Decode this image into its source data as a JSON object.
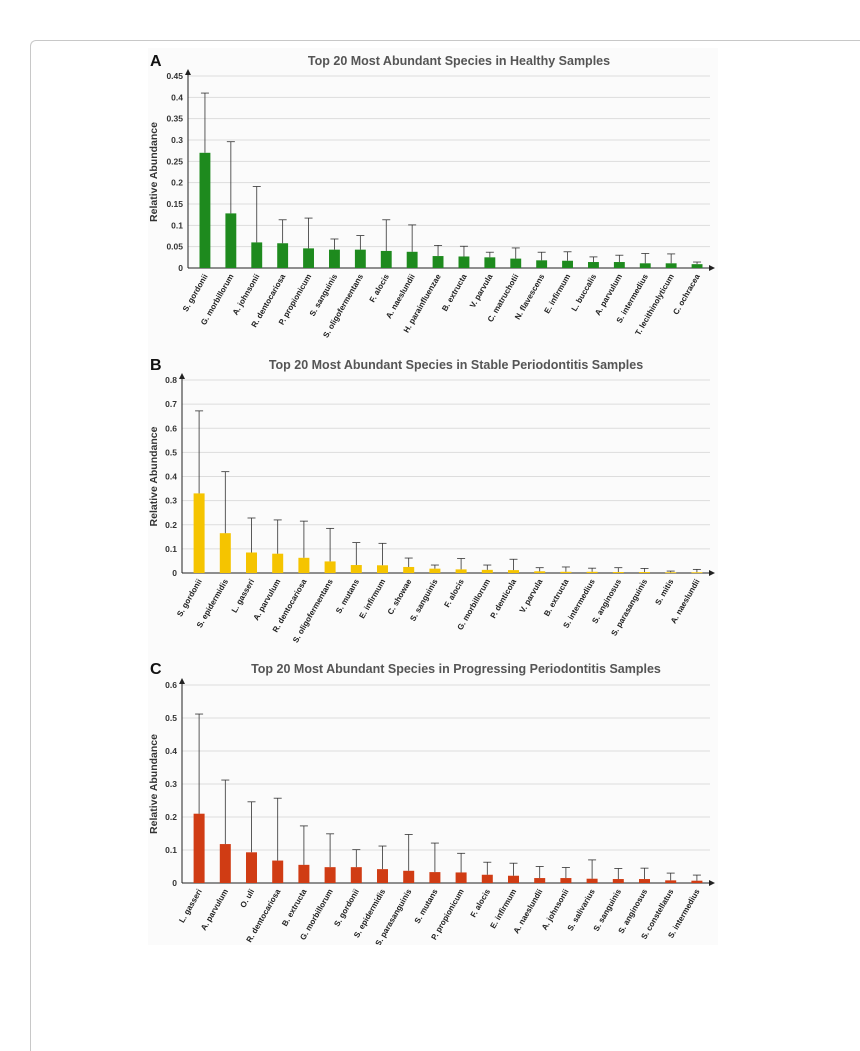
{
  "chart_data": [
    {
      "type": "bar",
      "panel": "A",
      "title": "Top 20 Most Abundant Species in Healthy Samples",
      "xlabel": "",
      "ylabel": "Relative Abundance",
      "ylim": [
        0,
        0.45
      ],
      "yticks": [
        "0",
        "0.05",
        "0.1",
        "0.15",
        "0.2",
        "0.25",
        "0.3",
        "0.35",
        "0.4",
        "0.45"
      ],
      "grid": true,
      "color": "#1e8a1e",
      "categories": [
        "S. gordonii",
        "G. morbillorum",
        "A. johnsonii",
        "R. dentocariosa",
        "P. propionicum",
        "S. sanguinis",
        "S. oligofermentans",
        "F. alocis",
        "A. naeslundii",
        "H. parainfluenzae",
        "B. extructa",
        "V. parvula",
        "C. matruchotii",
        "N. flavescens",
        "E. infirmum",
        "L. buccalis",
        "A. parvulum",
        "S. intermedius",
        "T. lecithinolyticum",
        "C. ochracea"
      ],
      "values": [
        0.27,
        0.128,
        0.06,
        0.058,
        0.046,
        0.043,
        0.043,
        0.04,
        0.038,
        0.028,
        0.027,
        0.025,
        0.022,
        0.018,
        0.017,
        0.014,
        0.014,
        0.011,
        0.011,
        0.009
      ],
      "errors": [
        0.14,
        0.168,
        0.131,
        0.055,
        0.071,
        0.025,
        0.033,
        0.073,
        0.063,
        0.025,
        0.024,
        0.012,
        0.025,
        0.019,
        0.021,
        0.012,
        0.016,
        0.023,
        0.022,
        0.005
      ]
    },
    {
      "type": "bar",
      "panel": "B",
      "title": "Top 20 Most Abundant Species in Stable Periodontitis Samples",
      "xlabel": "",
      "ylabel": "Relative Abundance",
      "ylim": [
        0,
        0.8
      ],
      "yticks": [
        "0",
        "0.1",
        "0.2",
        "0.3",
        "0.4",
        "0.5",
        "0.6",
        "0.7",
        "0.8"
      ],
      "grid": true,
      "color": "#f5c400",
      "categories": [
        "S. gordonii",
        "S. epidermidis",
        "L. gasseri",
        "A. parvulum",
        "R. dentocariosa",
        "S. oligofermentans",
        "S. mutans",
        "E. infirmum",
        "C. showae",
        "S. sanguinis",
        "F. alocis",
        "G. morbillorum",
        "P. denticola",
        "V. parvula",
        "B. extructa",
        "S. intermedius",
        "S. anginosus",
        "S. parasanguinis",
        "S. mitis",
        "A. naeslundii"
      ],
      "values": [
        0.33,
        0.165,
        0.085,
        0.08,
        0.063,
        0.048,
        0.033,
        0.032,
        0.025,
        0.018,
        0.015,
        0.013,
        0.012,
        0.007,
        0.005,
        0.005,
        0.004,
        0.004,
        0.003,
        0.003
      ],
      "errors": [
        0.342,
        0.255,
        0.143,
        0.14,
        0.152,
        0.137,
        0.093,
        0.091,
        0.037,
        0.015,
        0.045,
        0.02,
        0.045,
        0.015,
        0.02,
        0.015,
        0.018,
        0.015,
        0.005,
        0.012
      ]
    },
    {
      "type": "bar",
      "panel": "C",
      "title": "Top 20 Most Abundant Species in Progressing Periodontitis Samples",
      "xlabel": "",
      "ylabel": "Relative Abundance",
      "ylim": [
        0,
        0.6
      ],
      "yticks": [
        "0",
        "0.1",
        "0.2",
        "0.3",
        "0.4",
        "0.5",
        "0.6"
      ],
      "grid": true,
      "color": "#d03c14",
      "categories": [
        "L. gasseri",
        "A. parvulum",
        "O. uli",
        "R. dentocariosa",
        "B. extructa",
        "G. morbillorum",
        "S. gordonii",
        "S. epidermidis",
        "S. parasanguinis",
        "S. mutans",
        "P. propionicum",
        "F. alocis",
        "E. infirmum",
        "A. naeslundii",
        "A. johnsonii",
        "S. salivarius",
        "S. sanguinis",
        "S. anginosus",
        "S. constellatus",
        "S. intermedius"
      ],
      "values": [
        0.21,
        0.118,
        0.093,
        0.068,
        0.055,
        0.048,
        0.048,
        0.042,
        0.037,
        0.033,
        0.032,
        0.025,
        0.022,
        0.015,
        0.015,
        0.013,
        0.012,
        0.012,
        0.008,
        0.007
      ],
      "errors": [
        0.302,
        0.194,
        0.153,
        0.189,
        0.118,
        0.101,
        0.053,
        0.07,
        0.11,
        0.088,
        0.058,
        0.038,
        0.038,
        0.035,
        0.032,
        0.057,
        0.032,
        0.033,
        0.022,
        0.017
      ]
    }
  ]
}
